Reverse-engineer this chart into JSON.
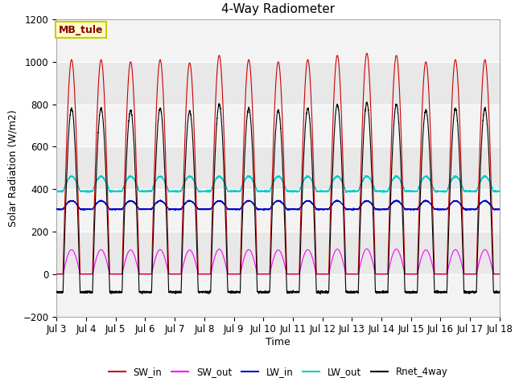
{
  "title": "4-Way Radiometer",
  "xlabel": "Time",
  "ylabel": "Solar Radiation (W/m2)",
  "ylim": [
    -200,
    1200
  ],
  "annotation_text": "MB_tule",
  "x_tick_labels": [
    "Jul 3",
    "Jul 4",
    "Jul 5",
    "Jul 6",
    "Jul 7",
    "Jul 8",
    "Jul 9",
    "Jul 10",
    "Jul 11",
    "Jul 12",
    "Jul 13",
    "Jul 14",
    "Jul 15",
    "Jul 16",
    "Jul 17",
    "Jul 18"
  ],
  "legend_entries": [
    "SW_in",
    "SW_out",
    "LW_in",
    "LW_out",
    "Rnet_4way"
  ],
  "legend_colors": [
    "#cc0000",
    "#ff00ff",
    "#0000cc",
    "#00cccc",
    "#000000"
  ],
  "line_colors": {
    "SW_in": "#cc0000",
    "SW_out": "#ff00ff",
    "LW_in": "#0000cc",
    "LW_out": "#00cccc",
    "Rnet_4way": "#000000"
  },
  "background_color": "#ffffff",
  "plot_bg_color": "#e8e8e8",
  "n_days": 15,
  "points_per_day": 288,
  "SW_in_peak": 1010,
  "SW_out_peak": 115,
  "LW_in_base": 305,
  "LW_in_peak": 345,
  "LW_out_base": 390,
  "LW_out_peak": 460,
  "Rnet_night": -100,
  "grid_color": "#ffffff",
  "title_fontsize": 11,
  "label_fontsize": 9,
  "tick_fontsize": 8.5,
  "annotation_bg": "#ffffcc",
  "annotation_edge": "#cccc00",
  "annotation_text_color": "#8B0000"
}
